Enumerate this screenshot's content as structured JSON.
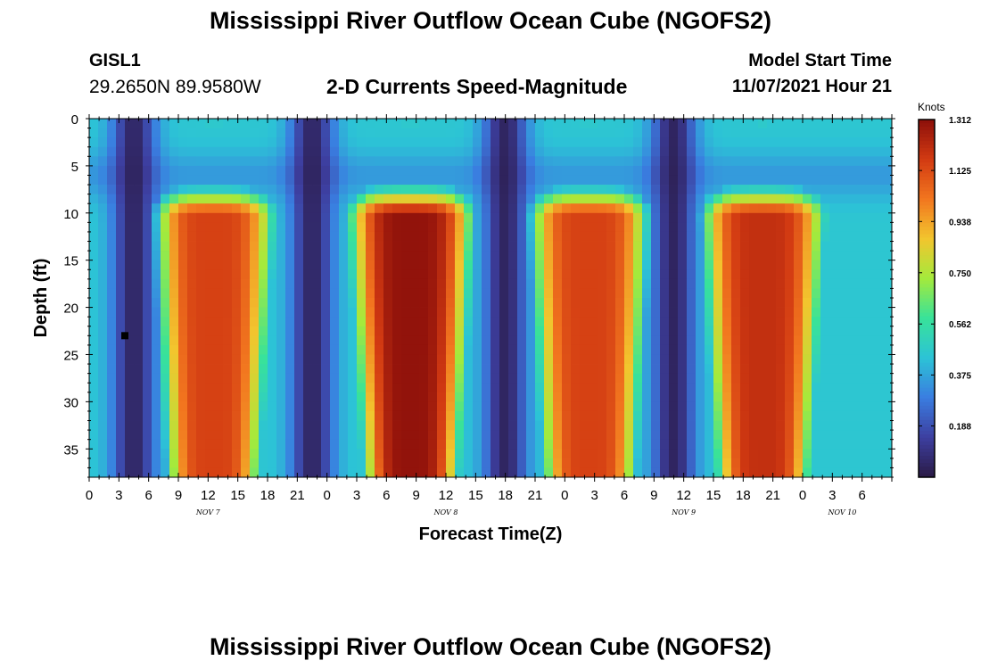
{
  "header": {
    "title": "Mississippi River Outflow Ocean Cube (NGOFS2)",
    "station_id": "GISL1",
    "station_coords": "29.2650N  89.9580W",
    "subtitle": "2-D Currents Speed-Magnitude",
    "model_start_label": "Model Start Time",
    "model_start_value": "11/07/2021 Hour 21"
  },
  "footer": {
    "next_title": "Mississippi River Outflow Ocean Cube (NGOFS2)"
  },
  "chart_data": {
    "type": "heatmap",
    "title": "2-D Currents Speed-Magnitude",
    "xlabel": "Forecast Time(Z)",
    "ylabel": "Depth (ft)",
    "colorbar_label": "Knots",
    "colorbar_ticks": [
      0.188,
      0.375,
      0.562,
      0.75,
      0.938,
      1.125,
      1.312
    ],
    "colorbar_range": [
      0.0,
      1.312
    ],
    "colormap": [
      "#2a1a45",
      "#3d3fa0",
      "#3a7de0",
      "#2cc3d6",
      "#38e29a",
      "#a4ea3c",
      "#f2c52e",
      "#f2761f",
      "#d23a12",
      "#8c0f0a"
    ],
    "x_range_hours": [
      0,
      81
    ],
    "y_range_ft": [
      0,
      38
    ],
    "y_ticks": [
      0,
      5,
      10,
      15,
      20,
      25,
      30,
      35
    ],
    "x_tick_labels": [
      "0",
      "3",
      "6",
      "9",
      "12",
      "15",
      "18",
      "21",
      "0",
      "3",
      "6",
      "9",
      "12",
      "15",
      "18",
      "21",
      "0",
      "3",
      "6",
      "9",
      "12",
      "15",
      "18",
      "21",
      "0",
      "3",
      "6"
    ],
    "date_labels": [
      {
        "label": "NOV 7",
        "hour": 12
      },
      {
        "label": "NOV 8",
        "hour": 36
      },
      {
        "label": "NOV 9",
        "hour": 60
      },
      {
        "label": "NOV 10",
        "hour": 76
      }
    ],
    "marker": {
      "hour": 3.6,
      "depth_ft": 23
    },
    "tidal_peaks_hours": [
      12.5,
      32.5,
      50.5,
      68
    ],
    "tidal_peak_speed_knots": [
      1.15,
      1.3,
      1.15,
      1.2
    ],
    "slack_water_hours": [
      4.5,
      22.5,
      42,
      59
    ]
  }
}
